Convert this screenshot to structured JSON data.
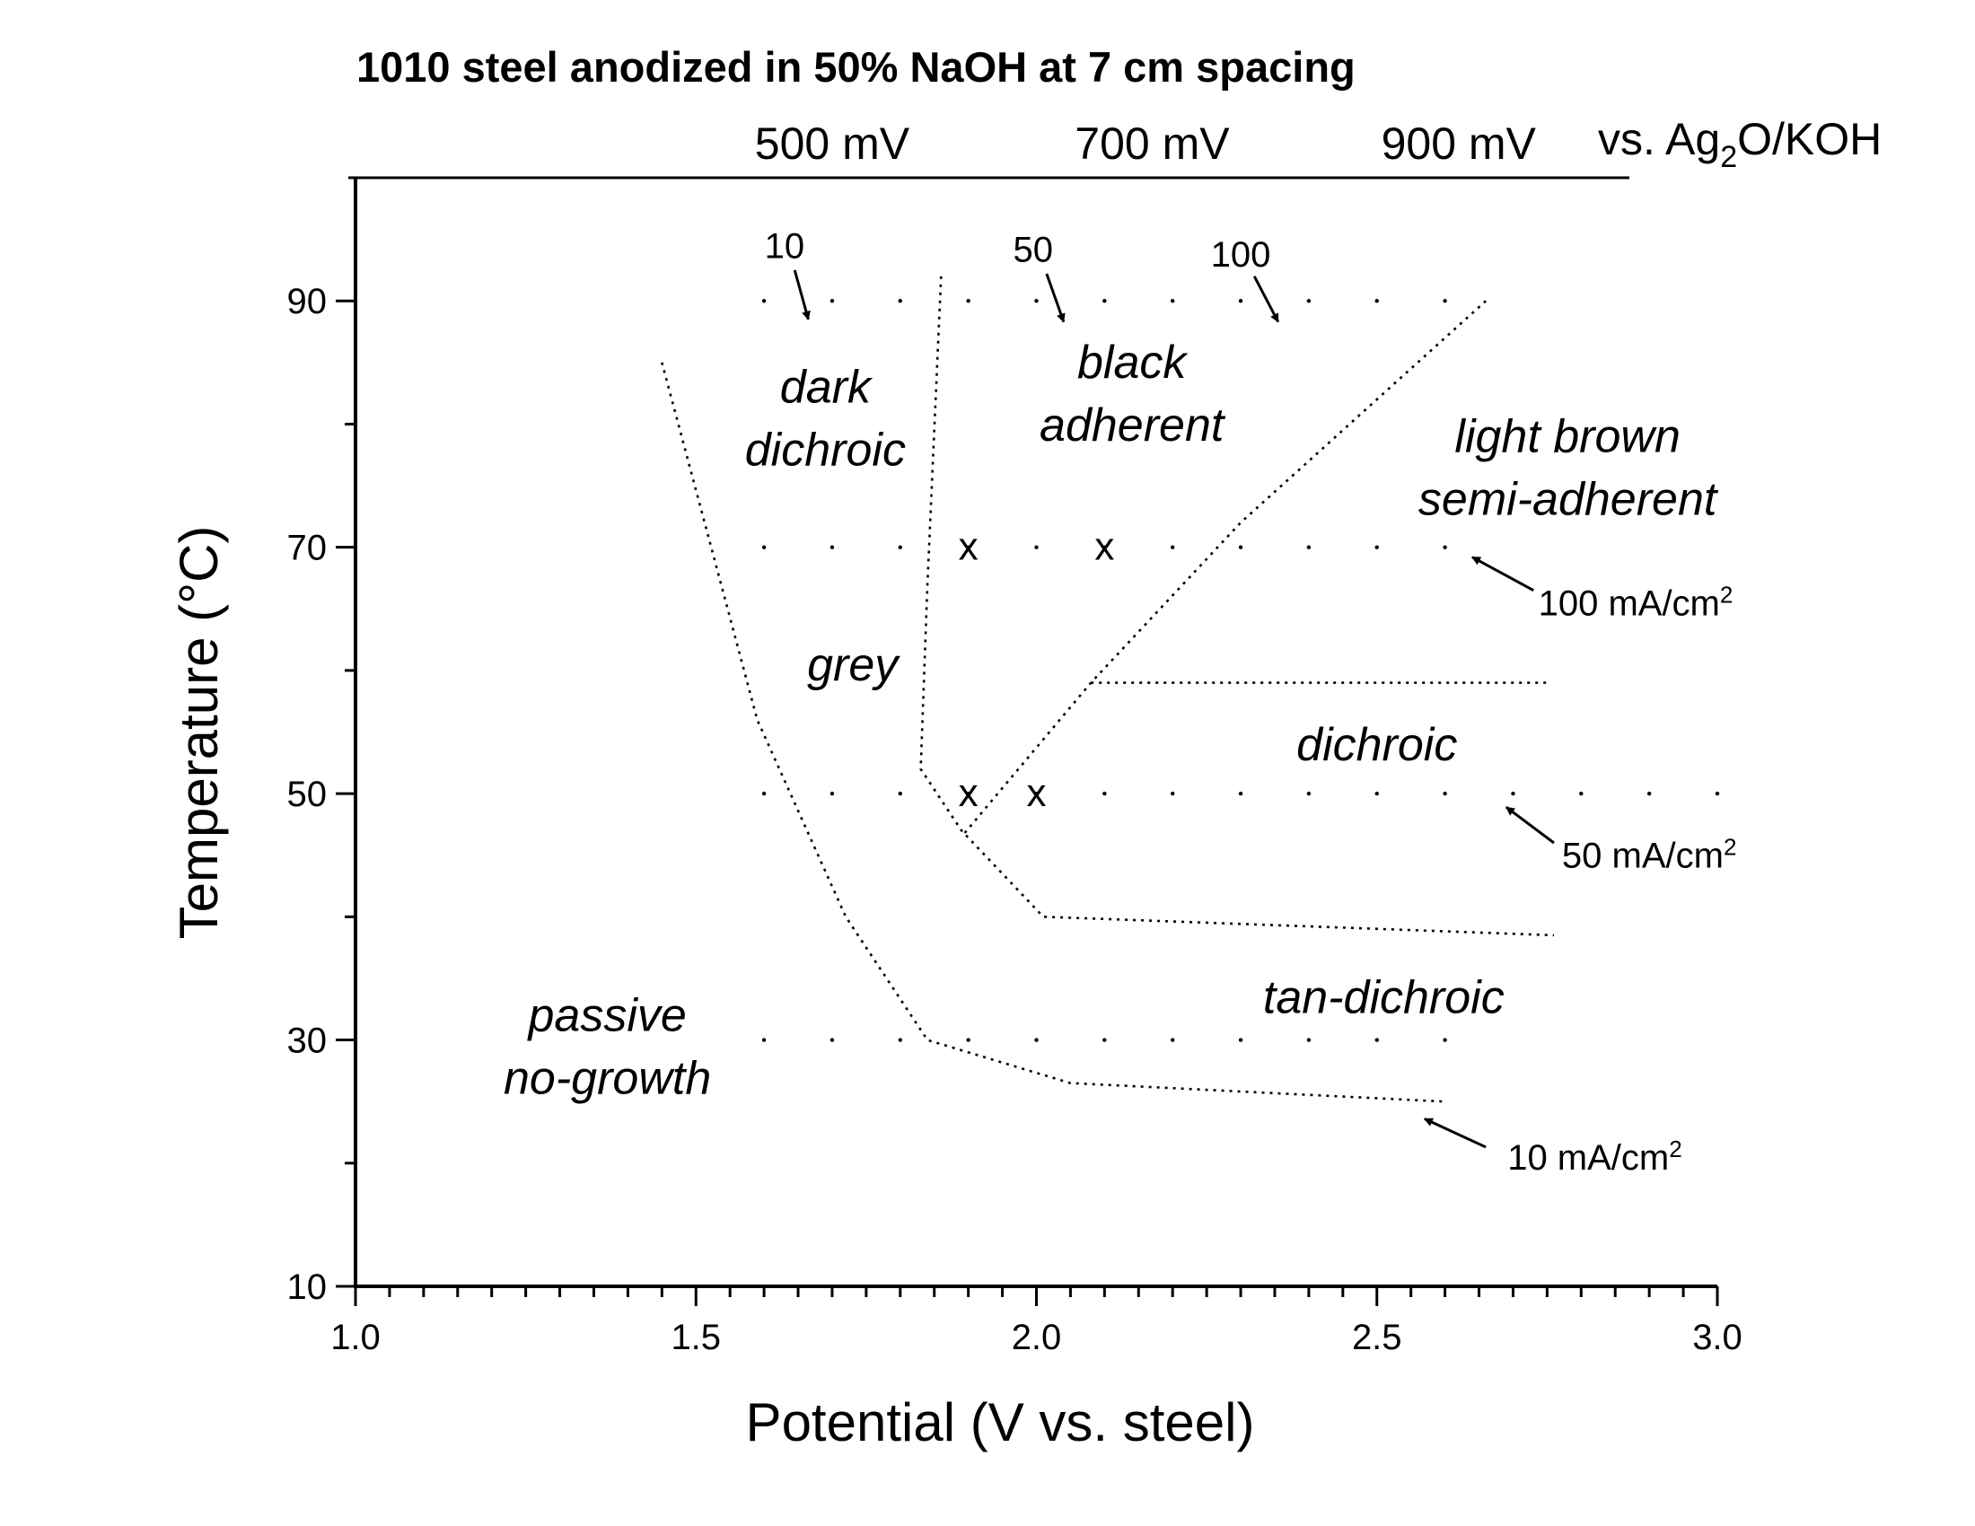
{
  "chart_data": {
    "type": "scatter",
    "title": "1010 steel anodized in 50% NaOH at 7 cm spacing",
    "xlabel": "Potential (V vs. steel)",
    "ylabel": "Temperature (°C)",
    "xlim": [
      1.0,
      3.0
    ],
    "ylim": [
      10,
      100
    ],
    "x_ticks": [
      1.0,
      1.5,
      2.0,
      2.5,
      3.0
    ],
    "x_tick_labels": [
      "1.0",
      "1.5",
      "2.0",
      "2.5",
      "3.0"
    ],
    "y_ticks": [
      10,
      30,
      50,
      70,
      90
    ],
    "y_tick_labels": [
      "10",
      "30",
      "50",
      "70",
      "90"
    ],
    "grid": false,
    "top_axis": {
      "ticks": [
        {
          "x": 1.7,
          "label": "500 mV"
        },
        {
          "x": 2.17,
          "label": "700 mV"
        },
        {
          "x": 2.62,
          "label": "900 mV"
        }
      ],
      "reference_label": "vs. Ag",
      "reference_subscript": "2",
      "reference_suffix": "O/KOH"
    },
    "measured_temperatures": [
      30,
      50,
      70,
      90
    ],
    "measurement_x_range": [
      1.6,
      2.6
    ],
    "measurement_step": 0.1,
    "measurement_x_range_50C": [
      1.6,
      3.0
    ],
    "boundaries": [
      {
        "name": "passive-boundary",
        "points": [
          [
            1.45,
            85
          ],
          [
            1.59,
            56
          ],
          [
            1.72,
            40
          ],
          [
            1.84,
            30
          ],
          [
            2.05,
            26.5
          ],
          [
            2.6,
            25
          ]
        ]
      },
      {
        "name": "dark-dichroic-grey-boundary",
        "points": [
          [
            1.86,
            92
          ],
          [
            1.84,
            67
          ],
          [
            1.83,
            52
          ],
          [
            1.89,
            47
          ],
          [
            2.01,
            40
          ],
          [
            2.76,
            38.5
          ]
        ]
      },
      {
        "name": "black-adherent-boundary",
        "points": [
          [
            2.66,
            90
          ],
          [
            2.3,
            72
          ],
          [
            2.08,
            59
          ],
          [
            1.89,
            46.5
          ]
        ]
      },
      {
        "name": "dichroic-upper-boundary",
        "points": [
          [
            2.08,
            59
          ],
          [
            2.75,
            59
          ]
        ]
      }
    ],
    "markers": [
      {
        "x": 1.9,
        "y": 70,
        "label": "x"
      },
      {
        "x": 2.1,
        "y": 70,
        "label": "x"
      },
      {
        "x": 1.9,
        "y": 50,
        "label": "x"
      },
      {
        "x": 2.0,
        "y": 50,
        "label": "x"
      }
    ],
    "regions": [
      {
        "lines": [
          "dark",
          "dichroic"
        ],
        "x": 1.69,
        "y": 80.5
      },
      {
        "lines": [
          "black",
          "adherent"
        ],
        "x": 2.14,
        "y": 82.5
      },
      {
        "lines": [
          "light brown",
          "semi-adherent"
        ],
        "x": 2.78,
        "y": 76.5
      },
      {
        "lines": [
          "grey"
        ],
        "x": 1.73,
        "y": 60.5
      },
      {
        "lines": [
          "dichroic"
        ],
        "x": 2.5,
        "y": 54
      },
      {
        "lines": [
          "tan-dichroic"
        ],
        "x": 2.51,
        "y": 33.5
      },
      {
        "lines": [
          "passive",
          "no-growth"
        ],
        "x": 1.37,
        "y": 29.5
      }
    ],
    "annotations": [
      {
        "text": "10",
        "text_x": 1.63,
        "text_y": 94.5,
        "arrow_from": [
          1.645,
          92.5
        ],
        "arrow_to": [
          1.665,
          88.5
        ]
      },
      {
        "text": "50",
        "text_x": 1.995,
        "text_y": 94.2,
        "arrow_from": [
          2.015,
          92.2
        ],
        "arrow_to": [
          2.04,
          88.3
        ]
      },
      {
        "text": "100",
        "text_x": 2.3,
        "text_y": 93.8,
        "arrow_from": [
          2.32,
          92
        ],
        "arrow_to": [
          2.355,
          88.3
        ]
      },
      {
        "text": "100 mA/cm",
        "sup": "2",
        "text_x": 2.88,
        "text_y": 65.5,
        "arrow_from": [
          2.73,
          66.5
        ],
        "arrow_to": [
          2.64,
          69.2
        ]
      },
      {
        "text": "50 mA/cm",
        "sup": "2",
        "text_x": 2.9,
        "text_y": 45,
        "arrow_from": [
          2.76,
          46
        ],
        "arrow_to": [
          2.69,
          48.9
        ]
      },
      {
        "text": "10 mA/cm",
        "sup": "2",
        "text_x": 2.82,
        "text_y": 20.5,
        "arrow_from": [
          2.66,
          21.3
        ],
        "arrow_to": [
          2.57,
          23.6
        ]
      }
    ]
  }
}
